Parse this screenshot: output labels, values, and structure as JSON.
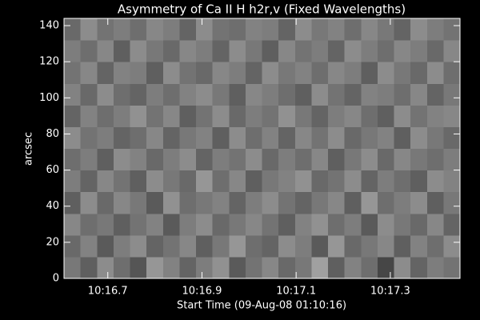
{
  "chart_data": {
    "type": "heatmap",
    "title": "Asymmetry of Ca II H h2r,v (Fixed Wavelengths)",
    "xlabel": "Start Time (09-Aug-08 01:10:16)",
    "ylabel": "arcsec",
    "xlim": [
      0.607,
      1.448
    ],
    "xticks": [
      {
        "value": 0.7,
        "label": "10:16.7"
      },
      {
        "value": 0.9,
        "label": "10:16.9"
      },
      {
        "value": 1.1,
        "label": "10:17.1"
      },
      {
        "value": 1.3,
        "label": "10:17.3"
      }
    ],
    "ylim": [
      0,
      144
    ],
    "yticks": [
      0,
      20,
      40,
      60,
      80,
      100,
      120,
      140
    ],
    "colormap": "gray",
    "values": [
      [
        120,
        95,
        140,
        110,
        85,
        150,
        130,
        100,
        125,
        145,
        90,
        115,
        135,
        105,
        120,
        160,
        95,
        130,
        110,
        70,
        140,
        100,
        125,
        115
      ],
      [
        105,
        130,
        90,
        125,
        140,
        100,
        115,
        135,
        95,
        120,
        150,
        110,
        100,
        140,
        125,
        90,
        150,
        105,
        120,
        135,
        95,
        130,
        110,
        140
      ],
      [
        135,
        110,
        120,
        95,
        115,
        130,
        90,
        125,
        140,
        105,
        120,
        135,
        115,
        95,
        130,
        145,
        110,
        125,
        90,
        140,
        120,
        105,
        135,
        100
      ],
      [
        95,
        140,
        105,
        135,
        120,
        90,
        145,
        110,
        120,
        130,
        100,
        125,
        140,
        115,
        100,
        120,
        135,
        95,
        150,
        110,
        125,
        140,
        95,
        120
      ],
      [
        125,
        100,
        135,
        115,
        95,
        140,
        120,
        105,
        150,
        110,
        135,
        95,
        120,
        130,
        145,
        105,
        115,
        140,
        100,
        125,
        110,
        95,
        140,
        130
      ],
      [
        110,
        125,
        95,
        140,
        130,
        105,
        125,
        140,
        100,
        125,
        115,
        140,
        105,
        125,
        110,
        135,
        95,
        120,
        140,
        105,
        135,
        120,
        110,
        125
      ],
      [
        140,
        115,
        125,
        100,
        110,
        135,
        100,
        120,
        130,
        95,
        140,
        110,
        130,
        100,
        135,
        115,
        140,
        105,
        120,
        130,
        95,
        140,
        120,
        105
      ],
      [
        100,
        130,
        110,
        125,
        145,
        115,
        135,
        95,
        115,
        140,
        105,
        125,
        115,
        145,
        120,
        100,
        125,
        135,
        110,
        95,
        140,
        115,
        130,
        135
      ],
      [
        130,
        105,
        140,
        110,
        100,
        125,
        110,
        130,
        140,
        120,
        95,
        135,
        125,
        110,
        95,
        140,
        115,
        100,
        130,
        125,
        110,
        135,
        100,
        120
      ],
      [
        115,
        135,
        100,
        130,
        125,
        95,
        140,
        115,
        105,
        135,
        125,
        100,
        140,
        120,
        130,
        110,
        135,
        125,
        95,
        140,
        120,
        105,
        140,
        110
      ],
      [
        125,
        110,
        135,
        95,
        140,
        120,
        105,
        135,
        125,
        100,
        140,
        120,
        95,
        135,
        115,
        125,
        100,
        140,
        125,
        110,
        135,
        125,
        105,
        135
      ],
      [
        105,
        140,
        115,
        125,
        110,
        135,
        125,
        100,
        140,
        115,
        110,
        130,
        125,
        100,
        140,
        120,
        130,
        110,
        135,
        120,
        100,
        140,
        125,
        115
      ]
    ]
  }
}
